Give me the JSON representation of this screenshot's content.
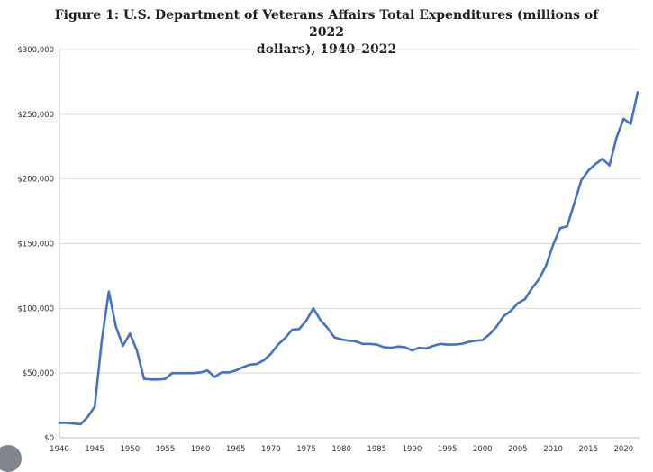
{
  "chart_data": {
    "type": "line",
    "title": "Figure 1: U.S. Department of Veterans Affairs Total Expenditures (millions of 2022 dollars), 1940–2022",
    "title_line1": "Figure 1: U.S. Department of Veterans Affairs Total Expenditures (millions of 2022",
    "title_line2": "dollars), 1940–2022",
    "xlabel": "",
    "ylabel": "",
    "xlim": [
      1940,
      2022
    ],
    "ylim": [
      0,
      300000
    ],
    "grid": "horizontal",
    "line_color": "#4472c4",
    "y_ticks": [
      {
        "value": 0,
        "label": "$0"
      },
      {
        "value": 50000,
        "label": "$50,000"
      },
      {
        "value": 100000,
        "label": "$100,000"
      },
      {
        "value": 150000,
        "label": "$150,000"
      },
      {
        "value": 200000,
        "label": "$200,000"
      },
      {
        "value": 250000,
        "label": "$250,000"
      },
      {
        "value": 300000,
        "label": "$300,000"
      }
    ],
    "x_ticks": [
      {
        "value": 1940,
        "label": "1940"
      },
      {
        "value": 1945,
        "label": "1945"
      },
      {
        "value": 1950,
        "label": "1950"
      },
      {
        "value": 1955,
        "label": "1955"
      },
      {
        "value": 1960,
        "label": "1960"
      },
      {
        "value": 1965,
        "label": "1965"
      },
      {
        "value": 1970,
        "label": "1970"
      },
      {
        "value": 1975,
        "label": "1975"
      },
      {
        "value": 1980,
        "label": "1980"
      },
      {
        "value": 1985,
        "label": "1985"
      },
      {
        "value": 1990,
        "label": "1990"
      },
      {
        "value": 1995,
        "label": "1995"
      },
      {
        "value": 2000,
        "label": "2000"
      },
      {
        "value": 2005,
        "label": "2005"
      },
      {
        "value": 2010,
        "label": "2010"
      },
      {
        "value": 2015,
        "label": "2015"
      },
      {
        "value": 2020,
        "label": "2020"
      }
    ],
    "series": [
      {
        "name": "Total Expenditures",
        "x": [
          1940,
          1941,
          1942,
          1943,
          1944,
          1945,
          1946,
          1947,
          1948,
          1949,
          1950,
          1951,
          1952,
          1953,
          1954,
          1955,
          1956,
          1957,
          1958,
          1959,
          1960,
          1961,
          1962,
          1963,
          1964,
          1965,
          1966,
          1967,
          1968,
          1969,
          1970,
          1971,
          1972,
          1973,
          1974,
          1975,
          1976,
          1977,
          1978,
          1979,
          1980,
          1981,
          1982,
          1983,
          1984,
          1985,
          1986,
          1987,
          1988,
          1989,
          1990,
          1991,
          1992,
          1993,
          1994,
          1995,
          1996,
          1997,
          1998,
          1999,
          2000,
          2001,
          2002,
          2003,
          2004,
          2005,
          2006,
          2007,
          2008,
          2009,
          2010,
          2011,
          2012,
          2013,
          2014,
          2015,
          2016,
          2017,
          2018,
          2019,
          2020,
          2021,
          2022
        ],
        "values": [
          11500,
          11500,
          11000,
          10500,
          16000,
          24000,
          75000,
          113000,
          86000,
          71000,
          80500,
          67000,
          45500,
          45000,
          45000,
          45500,
          50000,
          50000,
          50000,
          50000,
          50500,
          52000,
          47000,
          50500,
          50500,
          52000,
          54500,
          56500,
          57000,
          60000,
          65000,
          72000,
          77000,
          83500,
          84000,
          90500,
          100000,
          91000,
          85000,
          77500,
          76000,
          75000,
          74500,
          72500,
          72500,
          72000,
          70000,
          69500,
          70500,
          70000,
          67500,
          69500,
          69000,
          71000,
          72500,
          72000,
          72000,
          72500,
          74000,
          75000,
          75500,
          80000,
          86000,
          94000,
          98000,
          104000,
          107000,
          115500,
          122500,
          133000,
          149000,
          162000,
          163500,
          181000,
          199000,
          206500,
          211500,
          215500,
          210500,
          232000,
          246500,
          242500,
          267000
        ]
      }
    ]
  }
}
